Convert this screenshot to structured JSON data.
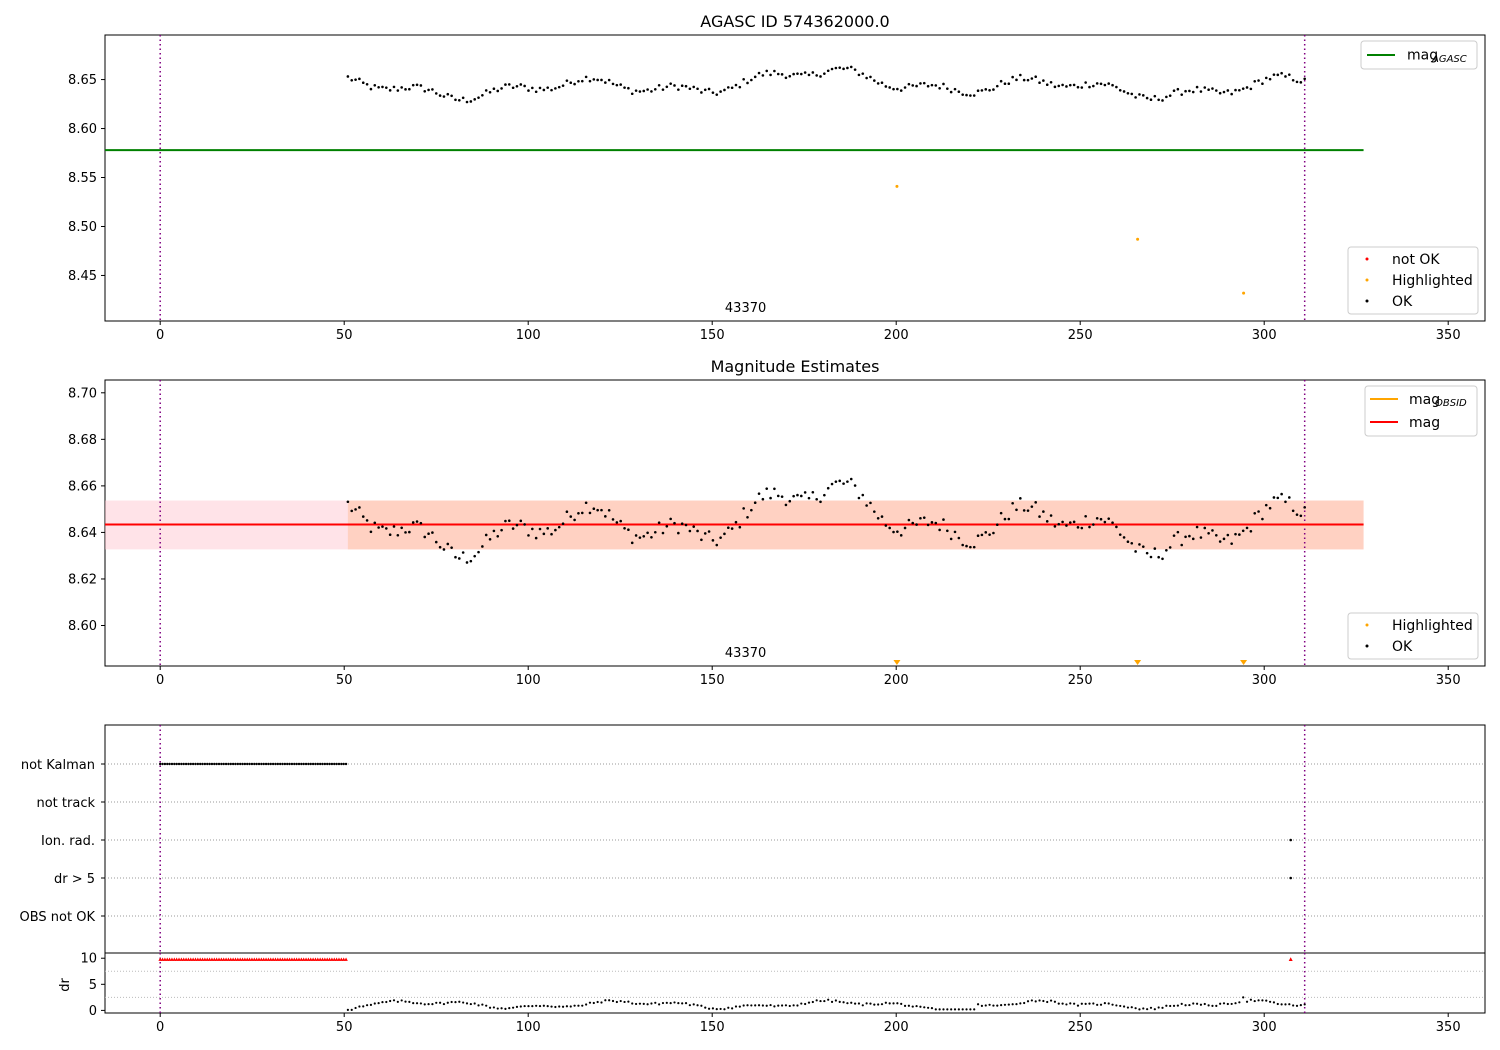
{
  "chart_data": [
    {
      "type": "scatter",
      "title": "AGASC ID 574362000.0",
      "xlim": [
        -15,
        360
      ],
      "ylim": [
        8.4035,
        8.6955
      ],
      "xticks": [
        0,
        50,
        100,
        150,
        200,
        250,
        300,
        350
      ],
      "yticks": [
        8.45,
        8.5,
        8.55,
        8.6,
        8.65
      ],
      "ytick_labels": [
        "8.45",
        "8.50",
        "8.55",
        "8.60",
        "8.65"
      ],
      "hlines": [
        {
          "name": "mag_AGASC",
          "label_main": "mag",
          "label_sub": "AGASC",
          "y": 8.578,
          "x_range": [
            -15,
            327
          ],
          "color": "#008000"
        }
      ],
      "vlines": [
        0,
        311
      ],
      "obsid_label": {
        "text": "43370",
        "x": 155
      },
      "highlighted": [
        [
          200.2,
          8.541
        ],
        [
          265.6,
          8.487
        ],
        [
          294.4,
          8.432
        ]
      ],
      "legend_lines": [
        {
          "main": "mag",
          "sub": "AGASC",
          "color": "#008000"
        }
      ],
      "legend_points": [
        {
          "label": "not OK",
          "color": "#ff0000"
        },
        {
          "label": "Highlighted",
          "color": "#ffa500"
        },
        {
          "label": "OK",
          "color": "#000000"
        }
      ],
      "ok_series": {
        "x_start": 51,
        "x_end": 311,
        "n": 250,
        "offset": 0.0,
        "clip_min": 8.4035
      }
    },
    {
      "type": "scatter",
      "title": "Magnitude Estimates",
      "xlim": [
        -15,
        360
      ],
      "ylim": [
        8.5826,
        8.7055
      ],
      "xticks": [
        0,
        50,
        100,
        150,
        200,
        250,
        300,
        350
      ],
      "yticks": [
        8.6,
        8.62,
        8.64,
        8.66,
        8.68,
        8.7
      ],
      "ytick_labels": [
        "8.60",
        "8.62",
        "8.64",
        "8.66",
        "8.68",
        "8.70"
      ],
      "hlines": [
        {
          "name": "mag_OBSID",
          "label_main": "mag",
          "label_sub": "OBSID",
          "y": 8.6434,
          "x_range": [
            -15,
            327
          ],
          "color": "#ffa500"
        },
        {
          "name": "mag",
          "label_main": "mag",
          "label_sub": "",
          "y": 8.6434,
          "x_range": [
            -15,
            327
          ],
          "color": "#ff0000"
        }
      ],
      "bands": [
        {
          "name": "mag-band",
          "y0": 8.6327,
          "y1": 8.6537,
          "x_range": [
            -15,
            327
          ],
          "color": "#ffc0cb",
          "opacity": 0.45
        },
        {
          "name": "mag-obsid-band",
          "y0": 8.6327,
          "y1": 8.6537,
          "x_range": [
            51,
            327
          ],
          "color": "#ffb07c",
          "opacity": 0.35
        }
      ],
      "vlines": [
        0,
        311
      ],
      "obsid_label": {
        "text": "43370",
        "x": 155
      },
      "highlighted_clipped": [
        200.2,
        265.6,
        294.4
      ],
      "legend_lines": [
        {
          "main": "mag",
          "sub": "OBSID",
          "color": "#ffa500"
        },
        {
          "main": "mag",
          "sub": "",
          "color": "#ff0000"
        }
      ],
      "legend_points": [
        {
          "label": "Highlighted",
          "color": "#ffa500"
        },
        {
          "label": "OK",
          "color": "#000000"
        }
      ],
      "ok_series": {
        "x_start": 51,
        "x_end": 311,
        "n": 250,
        "offset": 0.0,
        "clip_min": 8.5826
      }
    },
    {
      "type": "scatter",
      "title": "",
      "xlim": [
        -15,
        360
      ],
      "categories": [
        "not Kalman",
        "not track",
        "Ion. rad.",
        "dr > 5",
        "OBS not OK"
      ],
      "vlines": [
        0,
        311
      ],
      "flags": {
        "not Kalman": {
          "x_range": [
            0,
            50.5
          ],
          "n": 80
        },
        "Ion. rad.": {
          "points": [
            307.2
          ]
        },
        "dr > 5": {
          "points": [
            307.2
          ]
        }
      }
    },
    {
      "type": "scatter",
      "title": "",
      "ylabel": "dr",
      "xlim": [
        -15,
        360
      ],
      "ylim": [
        -0.5,
        11
      ],
      "yticks": [
        0,
        5,
        10
      ],
      "xticks": [
        0,
        50,
        100,
        150,
        200,
        250,
        300,
        350
      ],
      "vlines": [
        0,
        311
      ],
      "red_points": {
        "x_range": [
          0,
          50.5
        ],
        "n": 80,
        "y": 9.8,
        "extra": [
          [
            307.2,
            9.8
          ]
        ]
      },
      "ok_series": {
        "x_start": 51,
        "x_end": 311,
        "n": 250
      }
    }
  ]
}
